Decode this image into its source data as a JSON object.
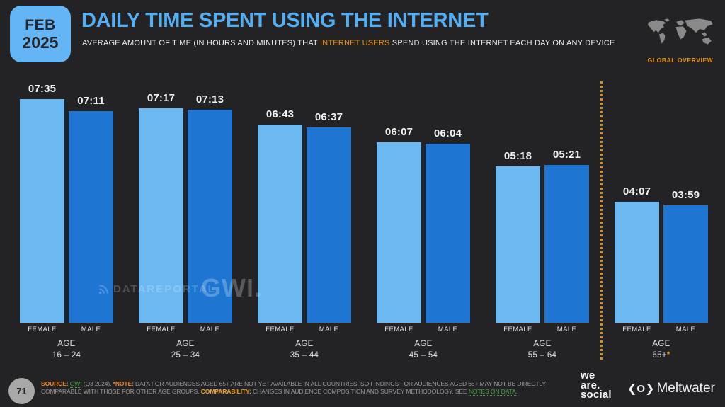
{
  "header": {
    "date_line1": "FEB",
    "date_line2": "2025",
    "title": "DAILY TIME SPENT USING THE INTERNET",
    "subtitle_prefix": "AVERAGE AMOUNT OF TIME (IN HOURS AND MINUTES) THAT ",
    "subtitle_highlight": "INTERNET USERS",
    "subtitle_suffix": " SPEND USING THE INTERNET EACH DAY ON ANY DEVICE",
    "overview_label": "GLOBAL OVERVIEW"
  },
  "chart_data": {
    "type": "bar",
    "title": "DAILY TIME SPENT USING THE INTERNET",
    "value_format": "HH:MM (hours:minutes per day)",
    "grid": false,
    "legend_position": "below-bars",
    "categories": [
      "AGE 16 – 24",
      "AGE 25 – 34",
      "AGE 35 – 44",
      "AGE 45 – 54",
      "AGE 55 – 64",
      "AGE 65+*"
    ],
    "series": [
      {
        "name": "FEMALE",
        "color": "#6CB9F2",
        "values": [
          "07:35",
          "07:17",
          "06:43",
          "06:07",
          "05:18",
          "04:07"
        ],
        "minutes": [
          455,
          437,
          403,
          367,
          318,
          247
        ]
      },
      {
        "name": "MALE",
        "color": "#1E76D2",
        "values": [
          "07:11",
          "07:13",
          "06:37",
          "06:04",
          "05:21",
          "03:59"
        ],
        "minutes": [
          431,
          433,
          397,
          364,
          321,
          239
        ]
      }
    ],
    "separator_after_category_index": 4
  },
  "groups": [
    {
      "age_title": "AGE",
      "age_range": "16 – 24",
      "note": ""
    },
    {
      "age_title": "AGE",
      "age_range": "25 – 34",
      "note": ""
    },
    {
      "age_title": "AGE",
      "age_range": "35 – 44",
      "note": ""
    },
    {
      "age_title": "AGE",
      "age_range": "45 – 54",
      "note": ""
    },
    {
      "age_title": "AGE",
      "age_range": "55 – 64",
      "note": ""
    },
    {
      "age_title": "AGE",
      "age_range": "65+",
      "note": "*"
    }
  ],
  "watermarks": {
    "datareportal": "DATAREPORTAL",
    "gwi": "GWI."
  },
  "footer": {
    "page_number": "71",
    "note_segments": [
      {
        "text": "SOURCE:",
        "style": "orange"
      },
      {
        "text": " ",
        "style": "plain"
      },
      {
        "text": "GWI",
        "style": "link"
      },
      {
        "text": " (Q3 2024). ",
        "style": "plain"
      },
      {
        "text": "*NOTE:",
        "style": "orange"
      },
      {
        "text": " DATA FOR AUDIENCES AGED 65+ ARE NOT YET AVAILABLE IN ALL COUNTRIES, SO FINDINGS FOR AUDIENCES AGED 65+ MAY NOT BE DIRECTLY COMPARABLE WITH THOSE FOR OTHER AGE GROUPS. ",
        "style": "plain"
      },
      {
        "text": "COMPARABILITY:",
        "style": "yellow"
      },
      {
        "text": " CHANGES IN AUDIENCE COMPOSITION AND SURVEY METHODOLOGY. SEE ",
        "style": "plain"
      },
      {
        "text": "NOTES ON DATA",
        "style": "link"
      },
      {
        "text": ".",
        "style": "plain"
      }
    ],
    "logos": {
      "wearesocial_lines": [
        "we",
        "are.",
        "social"
      ],
      "meltwater_icon": "O",
      "meltwater": "Meltwater"
    }
  },
  "colors": {
    "background": "#232326",
    "female_bar": "#6CB9F2",
    "male_bar": "#1E76D2",
    "badge": "#64B5F6",
    "title": "#54AEF0",
    "accent_orange": "#E8930F",
    "separator_orange": "#D78E12",
    "link_green": "#46A546"
  }
}
